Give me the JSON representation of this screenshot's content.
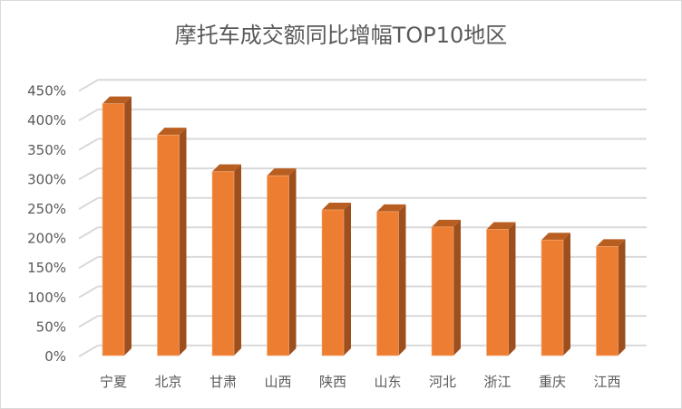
{
  "chart_data": {
    "type": "bar",
    "title": "摩托车成交额同比增幅TOP10地区",
    "categories": [
      "宁夏",
      "北京",
      "甘肃",
      "山西",
      "陕西",
      "山东",
      "河北",
      "浙江",
      "重庆",
      "江西"
    ],
    "values": [
      427,
      374,
      312,
      305,
      247,
      244,
      218,
      214,
      196,
      185
    ],
    "unit": "%",
    "ylim": [
      0,
      450
    ],
    "yticks": [
      "0%",
      "50%",
      "100%",
      "150%",
      "200%",
      "250%",
      "300%",
      "350%",
      "400%",
      "450%"
    ],
    "grid": true,
    "style": "3d-column",
    "colors": {
      "front": "#ED7D31",
      "side": "#9E4F1E",
      "top": "#B85E20",
      "grid": "#d9d9d9"
    }
  }
}
